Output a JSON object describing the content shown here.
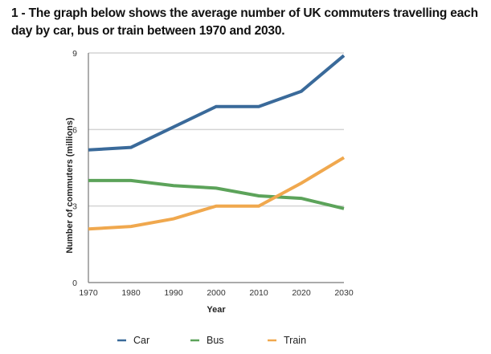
{
  "page": {
    "title": "1 - The graph below shows the average number of UK commuters travelling each day by car, bus or train between 1970 and 2030."
  },
  "chart_data": {
    "type": "line",
    "title": "",
    "xlabel": "Year",
    "ylabel": "Number of commuters (millions)",
    "categories": [
      "1970",
      "1980",
      "1990",
      "2000",
      "2010",
      "2020",
      "2030"
    ],
    "ylim": [
      0,
      9
    ],
    "yticks": [
      "0",
      "3",
      "6",
      "9"
    ],
    "ytick_values": [
      0,
      3,
      6,
      9
    ],
    "grid": true,
    "legend_position": "bottom",
    "series": [
      {
        "name": "Car",
        "color": "#3a6a9a",
        "values": [
          5.2,
          5.3,
          6.1,
          6.9,
          6.9,
          7.5,
          8.9
        ]
      },
      {
        "name": "Bus",
        "color": "#5ca35a",
        "values": [
          4.0,
          4.0,
          3.8,
          3.7,
          3.4,
          3.3,
          2.9
        ]
      },
      {
        "name": "Train",
        "color": "#f0a84e",
        "values": [
          2.1,
          2.2,
          2.5,
          3.0,
          3.0,
          3.9,
          4.9
        ]
      }
    ]
  }
}
